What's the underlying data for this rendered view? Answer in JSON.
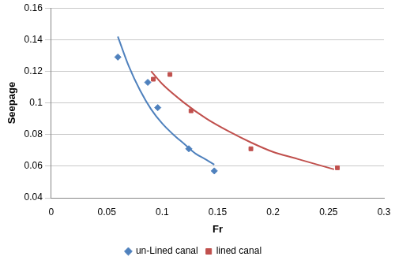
{
  "chart_data": {
    "type": "scatter",
    "x_label": "Fr",
    "y_label": "Seepage",
    "xlim": [
      0,
      0.3
    ],
    "xticks": [
      0,
      0.05,
      0.1,
      0.15,
      0.2,
      0.25,
      0.3
    ],
    "ylim": [
      0.04,
      0.16
    ],
    "yticks": [
      0.04,
      0.06,
      0.08,
      0.1,
      0.12,
      0.14,
      0.16
    ],
    "grid": "y",
    "legend": "bottom",
    "series": [
      {
        "name": "un-Lined canal",
        "color": "#4f81bd",
        "marker": "diamond",
        "x": [
          0.06,
          0.087,
          0.096,
          0.124,
          0.147
        ],
        "values": [
          0.129,
          0.113,
          0.097,
          0.071,
          0.057
        ],
        "trendline": {
          "x": [
            0.06,
            0.07,
            0.08,
            0.09,
            0.1,
            0.11,
            0.12,
            0.13,
            0.14,
            0.147
          ],
          "values": [
            0.142,
            0.123,
            0.108,
            0.096,
            0.087,
            0.08,
            0.074,
            0.068,
            0.064,
            0.061
          ]
        }
      },
      {
        "name": "lined canal",
        "color": "#c0504d",
        "marker": "square",
        "x": [
          0.092,
          0.107,
          0.126,
          0.18,
          0.258
        ],
        "values": [
          0.115,
          0.118,
          0.095,
          0.071,
          0.059
        ],
        "trendline": {
          "x": [
            0.09,
            0.1,
            0.12,
            0.14,
            0.16,
            0.18,
            0.2,
            0.22,
            0.24,
            0.255
          ],
          "values": [
            0.12,
            0.112,
            0.1,
            0.09,
            0.082,
            0.075,
            0.069,
            0.065,
            0.061,
            0.058
          ]
        }
      }
    ]
  }
}
